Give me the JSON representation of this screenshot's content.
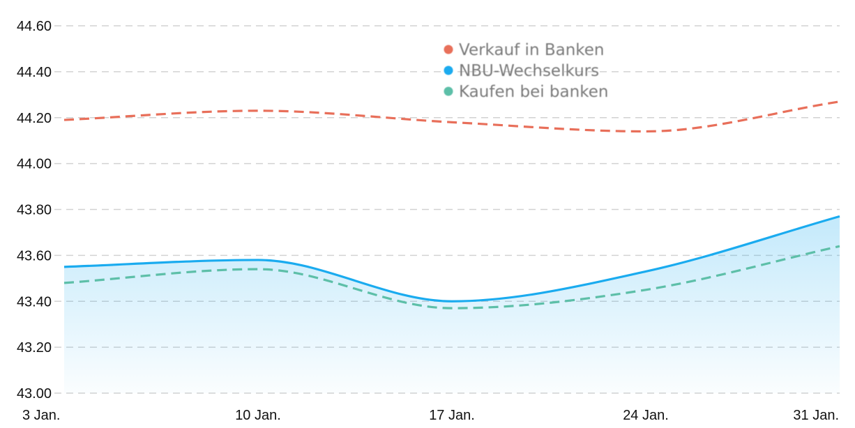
{
  "chart_data": {
    "type": "line",
    "title": "",
    "xlabel": "",
    "ylabel": "",
    "categories": [
      "3 Jan.",
      "10 Jan.",
      "17 Jan.",
      "24 Jan.",
      "31 Jan."
    ],
    "ylim": [
      43.0,
      44.6
    ],
    "yticks": [
      "43.00",
      "43.20",
      "43.40",
      "43.60",
      "43.80",
      "44.00",
      "44.20",
      "44.40",
      "44.60"
    ],
    "grid": true,
    "legend_position": "top-right",
    "series": [
      {
        "name": "Verkauf in Banken",
        "color": "#e86f5a",
        "style": "dashed",
        "x": [
          0,
          1,
          2,
          3,
          4
        ],
        "values": [
          44.19,
          44.23,
          44.18,
          44.14,
          44.27
        ]
      },
      {
        "name": "NBU-Wechselkurs",
        "color": "#1aabef",
        "style": "solid-area",
        "x": [
          0,
          1,
          2,
          3,
          4
        ],
        "values": [
          43.55,
          43.58,
          43.4,
          43.53,
          43.77
        ]
      },
      {
        "name": "Kaufen bei banken",
        "color": "#5dbfa8",
        "style": "dashed",
        "x": [
          0,
          1,
          2,
          3,
          4
        ],
        "values": [
          43.48,
          43.54,
          43.37,
          43.45,
          43.64
        ]
      }
    ]
  }
}
